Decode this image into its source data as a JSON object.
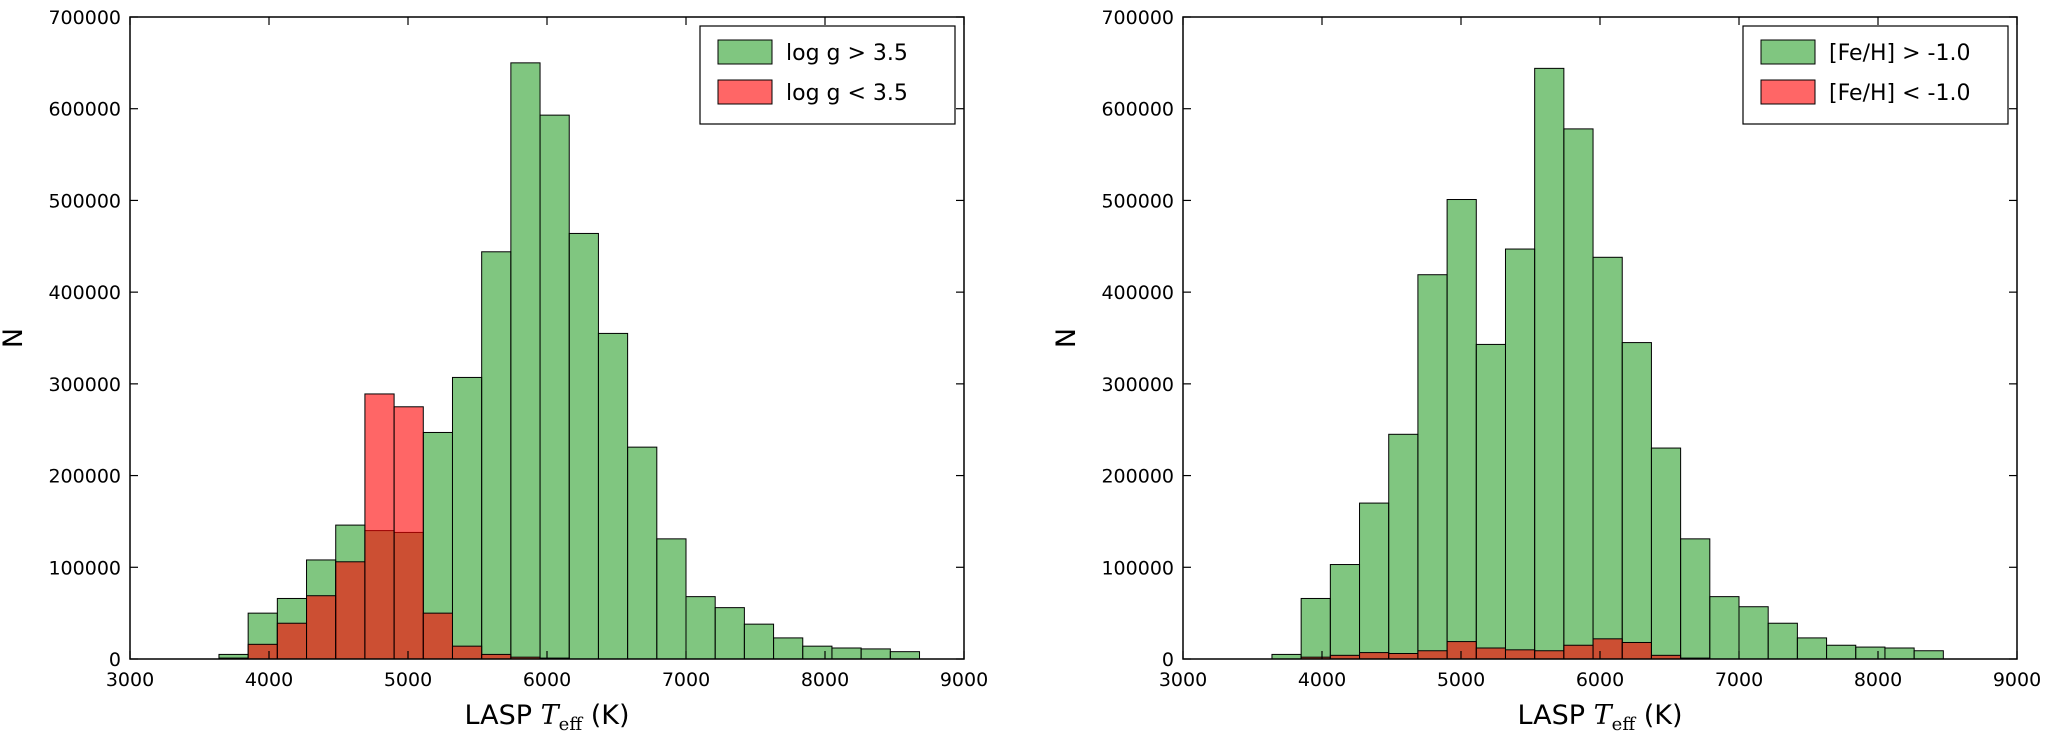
{
  "chart_data": [
    {
      "type": "bar",
      "panel": "left",
      "xlabel": "LASP T_eff (K)",
      "xlabel_parts": {
        "prefix": "LASP ",
        "symbol": "T",
        "subscript": "eff",
        "suffix": " (K)"
      },
      "ylabel": "N",
      "xlim": [
        3000,
        9000
      ],
      "ylim": [
        0,
        700000
      ],
      "x_ticks": [
        "3000",
        "4000",
        "5000",
        "6000",
        "7000",
        "8000",
        "9000"
      ],
      "y_ticks": [
        "0",
        "100000",
        "200000",
        "300000",
        "400000",
        "500000",
        "600000",
        "700000"
      ],
      "bins": [
        3640,
        3850,
        4060,
        4270,
        4480,
        4690,
        4900,
        5110,
        5320,
        5530,
        5740,
        5950,
        6160,
        6370,
        6580,
        6790,
        7000,
        7210,
        7420,
        7630,
        7840,
        8050,
        8260,
        8470
      ],
      "legend_position": "top-right",
      "grid": false,
      "series": [
        {
          "name": "log g > 3.5",
          "color": "#2ca02c",
          "values": [
            5000,
            50000,
            66000,
            108000,
            146000,
            140000,
            138000,
            247000,
            307000,
            444000,
            650000,
            593000,
            464000,
            355000,
            231000,
            131000,
            68000,
            56000,
            38000,
            23000,
            14000,
            12000,
            11000,
            8000
          ]
        },
        {
          "name": "log g < 3.5",
          "color": "#ff0000",
          "values": [
            1000,
            16000,
            39000,
            69000,
            106000,
            289000,
            275000,
            50000,
            14000,
            5000,
            2000,
            1000,
            0,
            0,
            0,
            0,
            0,
            0,
            0,
            0,
            0,
            0,
            0,
            0
          ]
        }
      ]
    },
    {
      "type": "bar",
      "panel": "right",
      "xlabel": "LASP T_eff (K)",
      "xlabel_parts": {
        "prefix": "LASP ",
        "symbol": "T",
        "subscript": "eff",
        "suffix": " (K)"
      },
      "ylabel": "N",
      "xlim": [
        3000,
        9000
      ],
      "ylim": [
        0,
        700000
      ],
      "x_ticks": [
        "3000",
        "4000",
        "5000",
        "6000",
        "7000",
        "8000",
        "9000"
      ],
      "y_ticks": [
        "0",
        "100000",
        "200000",
        "300000",
        "400000",
        "500000",
        "600000",
        "700000"
      ],
      "bins": [
        3640,
        3850,
        4060,
        4270,
        4480,
        4690,
        4900,
        5110,
        5320,
        5530,
        5740,
        5950,
        6160,
        6370,
        6580,
        6790,
        7000,
        7210,
        7420,
        7630,
        7840,
        8050,
        8260,
        8470
      ],
      "legend_position": "top-right",
      "grid": false,
      "series": [
        {
          "name": "[Fe/H] > -1.0",
          "color": "#2ca02c",
          "values": [
            5000,
            66000,
            103000,
            170000,
            245000,
            419000,
            501000,
            343000,
            447000,
            644000,
            578000,
            438000,
            345000,
            230000,
            131000,
            68000,
            57000,
            39000,
            23000,
            15000,
            13000,
            12000,
            9000,
            0
          ]
        },
        {
          "name": "[Fe/H] < -1.0",
          "color": "#ff0000",
          "values": [
            0,
            2000,
            4000,
            7000,
            6000,
            9000,
            19000,
            12000,
            10000,
            9000,
            15000,
            22000,
            18000,
            4000,
            1000,
            0,
            0,
            0,
            0,
            0,
            0,
            0,
            0,
            0
          ]
        }
      ]
    }
  ]
}
